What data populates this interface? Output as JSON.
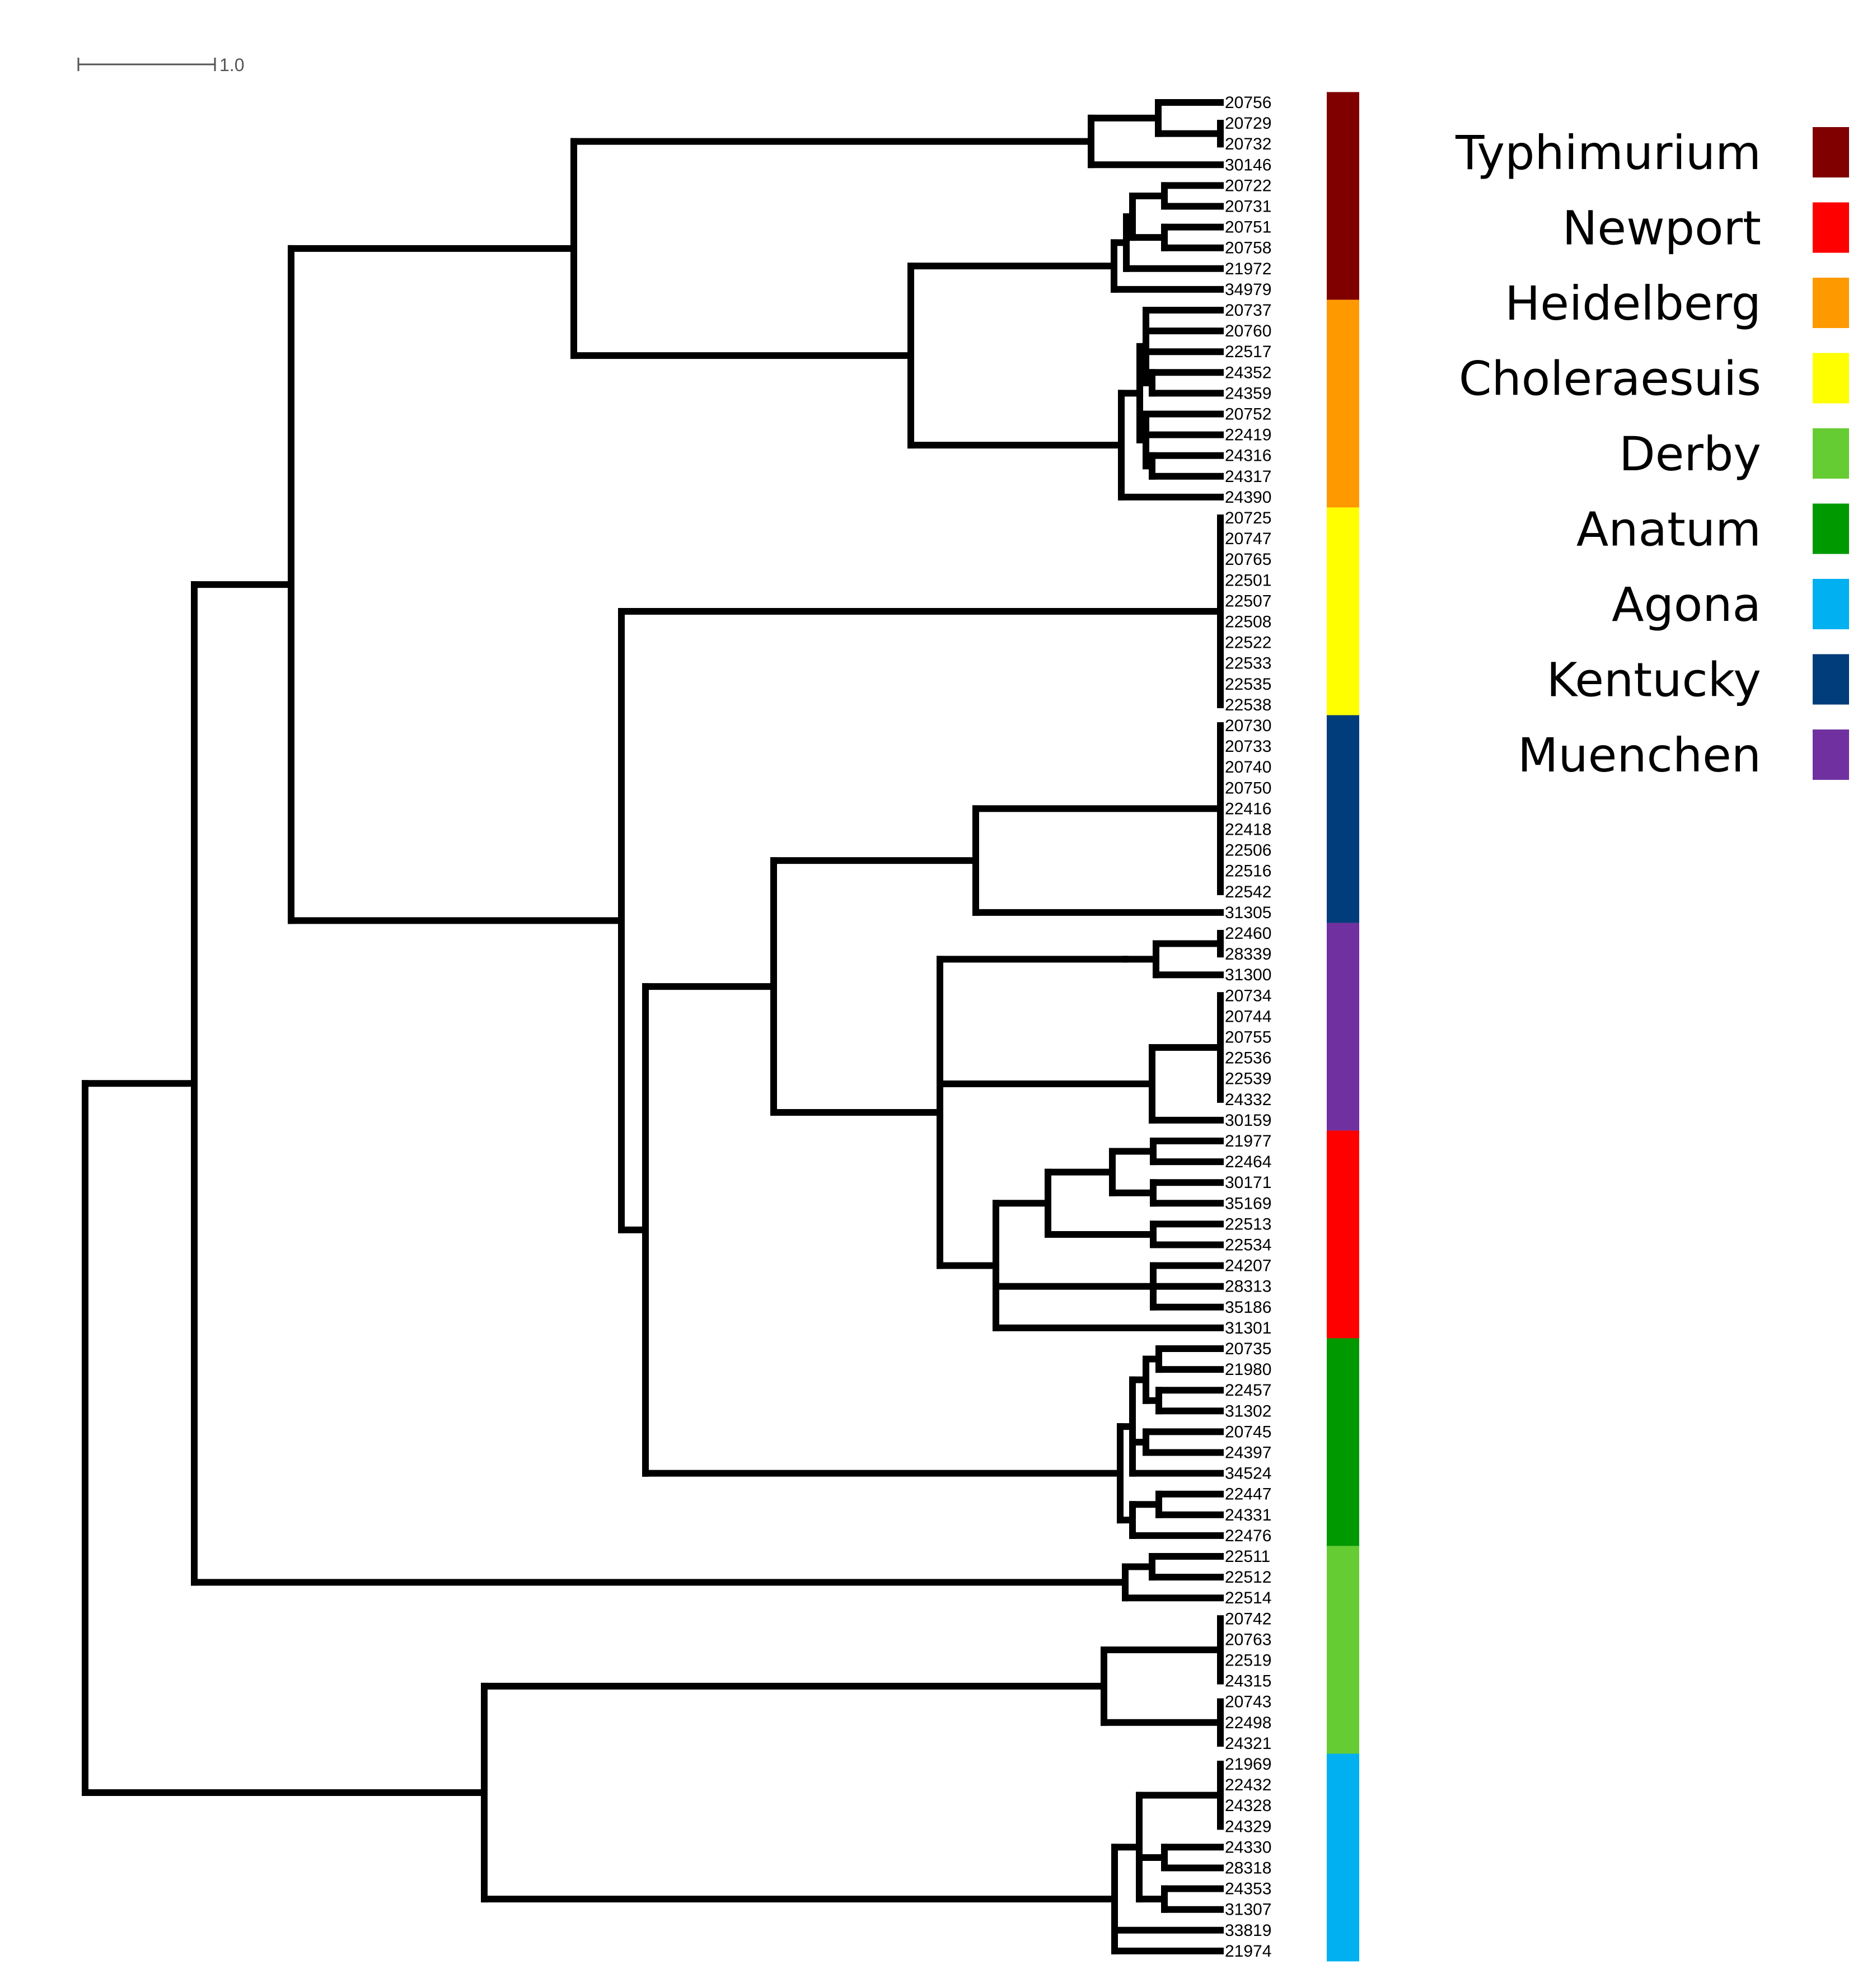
{
  "scale_bar": {
    "label": "1.0",
    "value": 1.0
  },
  "legend": [
    {
      "name": "Typhimurium",
      "color": "#800000"
    },
    {
      "name": "Newport",
      "color": "#ff0000"
    },
    {
      "name": "Heidelberg",
      "color": "#ff9900"
    },
    {
      "name": "Choleraesuis",
      "color": "#ffff00"
    },
    {
      "name": "Derby",
      "color": "#66cc33"
    },
    {
      "name": "Anatum",
      "color": "#009900"
    },
    {
      "name": "Agona",
      "color": "#00b0f0"
    },
    {
      "name": "Kentucky",
      "color": "#003d7a"
    },
    {
      "name": "Muenchen",
      "color": "#7030a0"
    }
  ],
  "color_strip": [
    {
      "serotype": "Typhimurium",
      "count": 10,
      "color": "#800000"
    },
    {
      "serotype": "Heidelberg",
      "count": 10,
      "color": "#ff9900"
    },
    {
      "serotype": "Choleraesuis",
      "count": 10,
      "color": "#ffff00"
    },
    {
      "serotype": "Kentucky",
      "count": 10,
      "color": "#003d7a"
    },
    {
      "serotype": "Muenchen",
      "count": 10,
      "color": "#7030a0"
    },
    {
      "serotype": "Newport",
      "count": 10,
      "color": "#ff0000"
    },
    {
      "serotype": "Anatum",
      "count": 10,
      "color": "#009900"
    },
    {
      "serotype": "Derby",
      "count": 10,
      "color": "#66cc33"
    },
    {
      "serotype": "Agona",
      "count": 10,
      "color": "#00b0f0"
    }
  ],
  "tips": [
    "20756",
    "20729",
    "20732",
    "30146",
    "20722",
    "20731",
    "20751",
    "20758",
    "21972",
    "34979",
    "20737",
    "20760",
    "22517",
    "24352",
    "24359",
    "20752",
    "22419",
    "24316",
    "24317",
    "24390",
    "20725",
    "20747",
    "20765",
    "22501",
    "22507",
    "22508",
    "22522",
    "22533",
    "22535",
    "22538",
    "20730",
    "20733",
    "20740",
    "20750",
    "22416",
    "22418",
    "22506",
    "22516",
    "22542",
    "31305",
    "22460",
    "28339",
    "31300",
    "20734",
    "20744",
    "20755",
    "22536",
    "22539",
    "24332",
    "30159",
    "21977",
    "22464",
    "30171",
    "35169",
    "22513",
    "22534",
    "24207",
    "28313",
    "35186",
    "31301",
    "20735",
    "21980",
    "22457",
    "31302",
    "20745",
    "24397",
    "34524",
    "22447",
    "24331",
    "22476",
    "22511",
    "22512",
    "22514",
    "20742",
    "20763",
    "22519",
    "24315",
    "20743",
    "22498",
    "24321",
    "21969",
    "22432",
    "24328",
    "24329",
    "24330",
    "28318",
    "24353",
    "31307",
    "33819",
    "21974"
  ]
}
